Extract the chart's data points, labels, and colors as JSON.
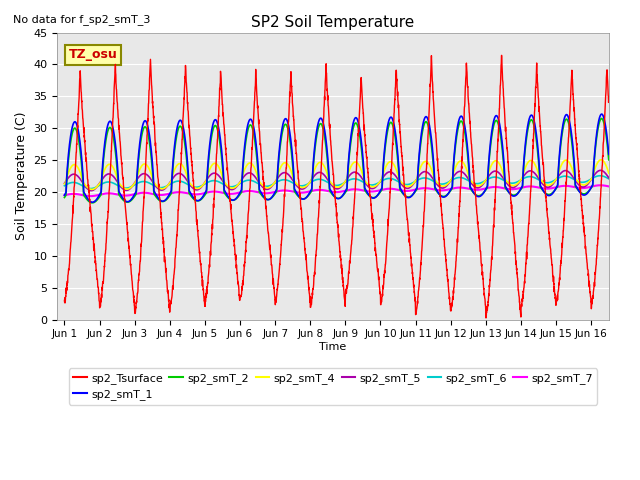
{
  "title": "SP2 Soil Temperature",
  "subtitle": "No data for f_sp2_smT_3",
  "xlabel": "Time",
  "ylabel": "Soil Temperature (C)",
  "ylim": [
    0,
    45
  ],
  "xlim": [
    -0.2,
    15.5
  ],
  "tz_label": "TZ_osu",
  "x_tick_labels": [
    "Jun 1",
    "Jun 2",
    "Jun 3",
    "Jun 4",
    "Jun 5",
    "Jun 6",
    "Jun 7",
    "Jun 8",
    "Jun 9",
    "Jun 10",
    "Jun 11",
    "Jun 12",
    "Jun 13",
    "Jun 14",
    "Jun 15",
    "Jun 16"
  ],
  "legend_entries": [
    {
      "label": "sp2_Tsurface",
      "color": "#ff0000"
    },
    {
      "label": "sp2_smT_1",
      "color": "#0000ff"
    },
    {
      "label": "sp2_smT_2",
      "color": "#00cc00"
    },
    {
      "label": "sp2_smT_4",
      "color": "#ffff00"
    },
    {
      "label": "sp2_smT_5",
      "color": "#aa00aa"
    },
    {
      "label": "sp2_smT_6",
      "color": "#00cccc"
    },
    {
      "label": "sp2_smT_7",
      "color": "#ff00ff"
    }
  ],
  "bg_color": "#e8e8e8",
  "grid_color": "#ffffff",
  "yticks": [
    0,
    5,
    10,
    15,
    20,
    25,
    30,
    35,
    40,
    45
  ]
}
